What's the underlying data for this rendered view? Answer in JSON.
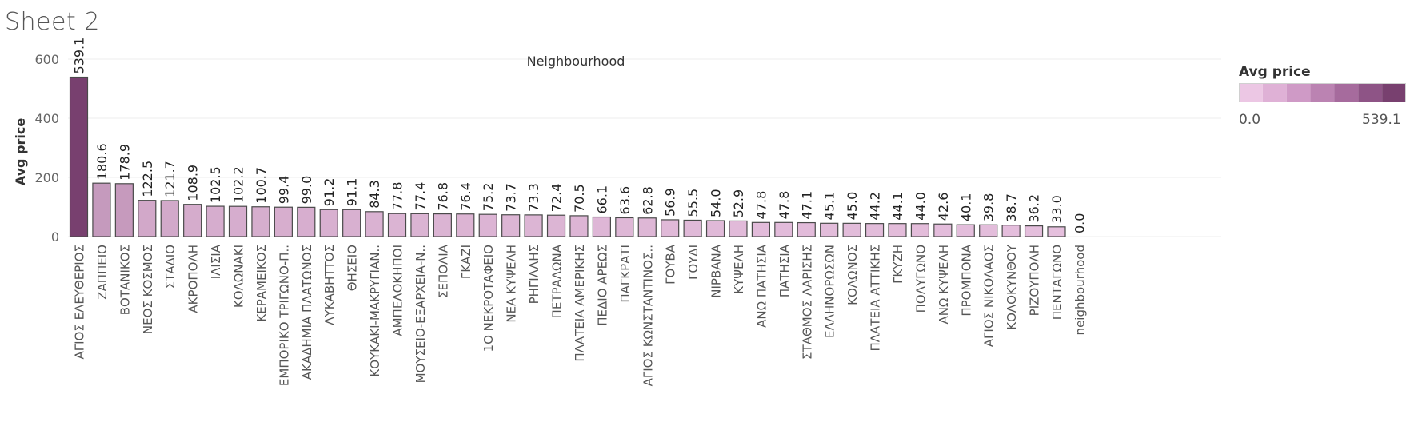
{
  "sheet": {
    "title": "Sheet 2"
  },
  "legend": {
    "title": "Avg price",
    "min_label": "0.0",
    "max_label": "539.1",
    "colors": [
      "#ecc7e4",
      "#dfb1d6",
      "#cf9ac6",
      "#bb83b2",
      "#a66b9d",
      "#8e5486",
      "#78406f"
    ]
  },
  "chart_data": {
    "type": "bar",
    "title": "Neighbourhood",
    "xlabel": "",
    "ylabel": "Avg price",
    "ylim": [
      0,
      600
    ],
    "yticks": [
      0,
      200,
      400,
      600
    ],
    "grid": true,
    "color_scale": {
      "min": 0.0,
      "max": 539.1,
      "low": "#ecc7e4",
      "high": "#78406f"
    },
    "categories": [
      "ΑΓΙΟΣ ΕΛΕΥΘΕΡΙΟΣ",
      "ΖΑΠΠΕΙΟ",
      "ΒΟΤΑΝΙΚΟΣ",
      "ΝΕΟΣ ΚΟΣΜΟΣ",
      "ΣΤΑΔΙΟ",
      "ΑΚΡΟΠΟΛΗ",
      "ΙΛΙΣΙΑ",
      "ΚΟΛΩΝΑΚΙ",
      "ΚΕΡΑΜΕΙΚΟΣ",
      "ΕΜΠΟΡΙΚΟ ΤΡΙΓΩΝΟ-Π..",
      "ΑΚΑΔΗΜΙΑ ΠΛΑΤΩΝΟΣ",
      "ΛΥΚΑΒΗΤΤΟΣ",
      "ΘΗΣΕΙΟ",
      "ΚΟΥΚΑΚΙ-ΜΑΚΡΥΓΙΑΝ..",
      "ΑΜΠΕΛΟΚΗΠΟΙ",
      "ΜΟΥΣΕΙΟ-ΕΞΑΡΧΕΙΑ-Ν..",
      "ΣΕΠΟΛΙΑ",
      "ΓΚΑΖΙ",
      "1Ο ΝΕΚΡΟΤΑΦΕΙΟ",
      "ΝΕΑ ΚΥΨΕΛΗ",
      "ΡΗΓΙΛΛΗΣ",
      "ΠΕΤΡΑΛΩΝΑ",
      "ΠΛΑΤΕΙΑ ΑΜΕΡΙΚΗΣ",
      "ΠΕΔΙΟ ΑΡΕΩΣ",
      "ΠΑΓΚΡΑΤΙ",
      "ΑΓΙΟΣ ΚΩΝΣΤΑΝΤΙΝΟΣ..",
      "ΓΟΥΒΑ",
      "ΓΟΥΔΙ",
      "ΝΙΡΒΑΝΑ",
      "ΚΥΨΕΛΗ",
      "ΑΝΩ ΠΑΤΗΣΙΑ",
      "ΠΑΤΗΣΙΑ",
      "ΣΤΑΘΜΟΣ ΛΑΡΙΣΗΣ",
      "ΕΛΛΗΝΟΡΩΣΩΝ",
      "ΚΟΛΩΝΟΣ",
      "ΠΛΑΤΕΙΑ ΑΤΤΙΚΗΣ",
      "ΓΚΥΖΗ",
      "ΠΟΛΥΓΩΝΟ",
      "ΑΝΩ ΚΥΨΕΛΗ",
      "ΠΡΟΜΠΟΝΑ",
      "ΑΓΙΟΣ ΝΙΚΟΛΑΟΣ",
      "ΚΟΛΟΚΥΝΘΟΥ",
      "ΡΙΖΟΥΠΟΛΗ",
      "ΠΕΝΤΑΓΩΝΟ",
      "neighbourhood"
    ],
    "values": [
      539.1,
      180.6,
      178.9,
      122.5,
      121.7,
      108.9,
      102.5,
      102.2,
      100.7,
      99.4,
      99.0,
      91.2,
      91.1,
      84.3,
      77.8,
      77.4,
      76.8,
      76.4,
      75.2,
      73.7,
      73.3,
      72.4,
      70.5,
      66.1,
      63.6,
      62.8,
      56.9,
      55.5,
      54.0,
      52.9,
      47.8,
      47.8,
      47.1,
      45.1,
      45.0,
      44.2,
      44.1,
      44.0,
      42.6,
      40.1,
      39.8,
      38.7,
      36.2,
      33.0,
      0.0
    ],
    "value_labels": [
      "539.1",
      "180.6",
      "178.9",
      "122.5",
      "121.7",
      "108.9",
      "102.5",
      "102.2",
      "100.7",
      "99.4",
      "99.0",
      "91.2",
      "91.1",
      "84.3",
      "77.8",
      "77.4",
      "76.8",
      "76.4",
      "75.2",
      "73.7",
      "73.3",
      "72.4",
      "70.5",
      "66.1",
      "63.6",
      "62.8",
      "56.9",
      "55.5",
      "54.0",
      "52.9",
      "47.8",
      "47.8",
      "47.1",
      "45.1",
      "45.0",
      "44.2",
      "44.1",
      "44.0",
      "42.6",
      "40.1",
      "39.8",
      "38.7",
      "36.2",
      "33.0",
      "0.0"
    ]
  }
}
